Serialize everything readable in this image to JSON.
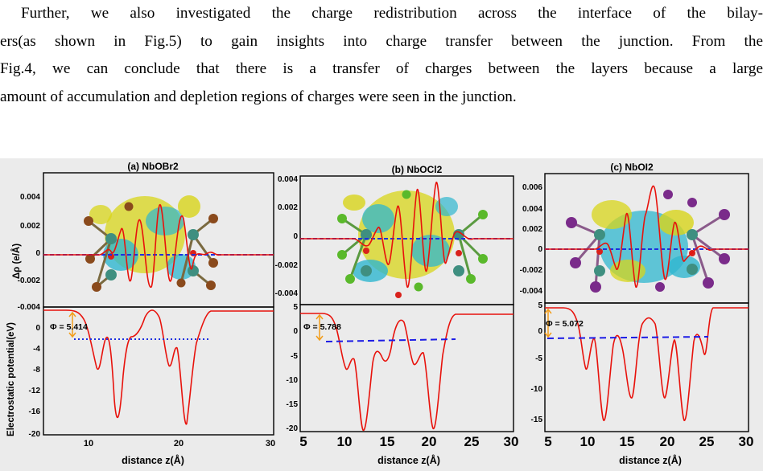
{
  "paragraph": {
    "lines": [
      "Further, we also investigated the charge redistribution across the interface of the bilay-",
      "ers(as shown in Fig.5) to gain insights into charge transfer between the junction. From the",
      "Fig.4, we can conclude that there is a transfer of charges between the layers because a large",
      "amount of accumulation and depletion regions of charges were seen in the junction."
    ]
  },
  "figure": {
    "ylabel_top": "Δρ (e/Å)",
    "ylabel_bottom": "Electrostatic potential(eV)",
    "xlabel": "distance z(Å)",
    "colors": {
      "background": "#ebebeb",
      "curve": "#e8120c",
      "dotted_line": "#1c2fe0",
      "dashed_line": "#1c1ce6",
      "arrow": "#f29d1a",
      "iso_yellow": "#d8d51a",
      "iso_cyan": "#2fb7cf",
      "atom_nb": "#3f8f80",
      "atom_o": "#d9221c",
      "atom_br": "#8a4a1c",
      "atom_cl": "#5ab92b",
      "atom_i": "#7a2b8a"
    },
    "panels": [
      {
        "title": "(a) NbOBr2",
        "halogen_color": "#8a4a1c",
        "top_yticks": [
          "0.004",
          "0.002",
          "0",
          "-0.002",
          "-0.004"
        ],
        "bottom_yticks": [
          "0",
          "-4",
          "-8",
          "-12",
          "-16",
          "-20"
        ],
        "xticks": [
          "10",
          "20",
          "30"
        ],
        "phi_label": "Φ = 5.414",
        "reference_line_style": "dotted"
      },
      {
        "title": "(b) NbOCl2",
        "halogen_color": "#5ab92b",
        "top_yticks": [
          "0.004",
          "0.002",
          "0",
          "-0.002",
          "-0.004"
        ],
        "bottom_yticks": [
          "5",
          "0",
          "-5",
          "-10",
          "-15",
          "-20"
        ],
        "xticks": [
          "5",
          "10",
          "15",
          "20",
          "25",
          "30"
        ],
        "phi_label": "Φ = 5.788",
        "reference_line_style": "dashed"
      },
      {
        "title": "(c) NbOI2",
        "halogen_color": "#7a2b8a",
        "top_yticks": [
          "0.006",
          "0.004",
          "0.002",
          "0",
          "-0.002",
          "-0.004"
        ],
        "bottom_yticks": [
          "5",
          "0",
          "-5",
          "-10",
          "-15"
        ],
        "xticks": [
          "5",
          "10",
          "15",
          "20",
          "25",
          "30"
        ],
        "phi_label": "Φ = 5.072",
        "reference_line_style": "dashed"
      }
    ]
  }
}
